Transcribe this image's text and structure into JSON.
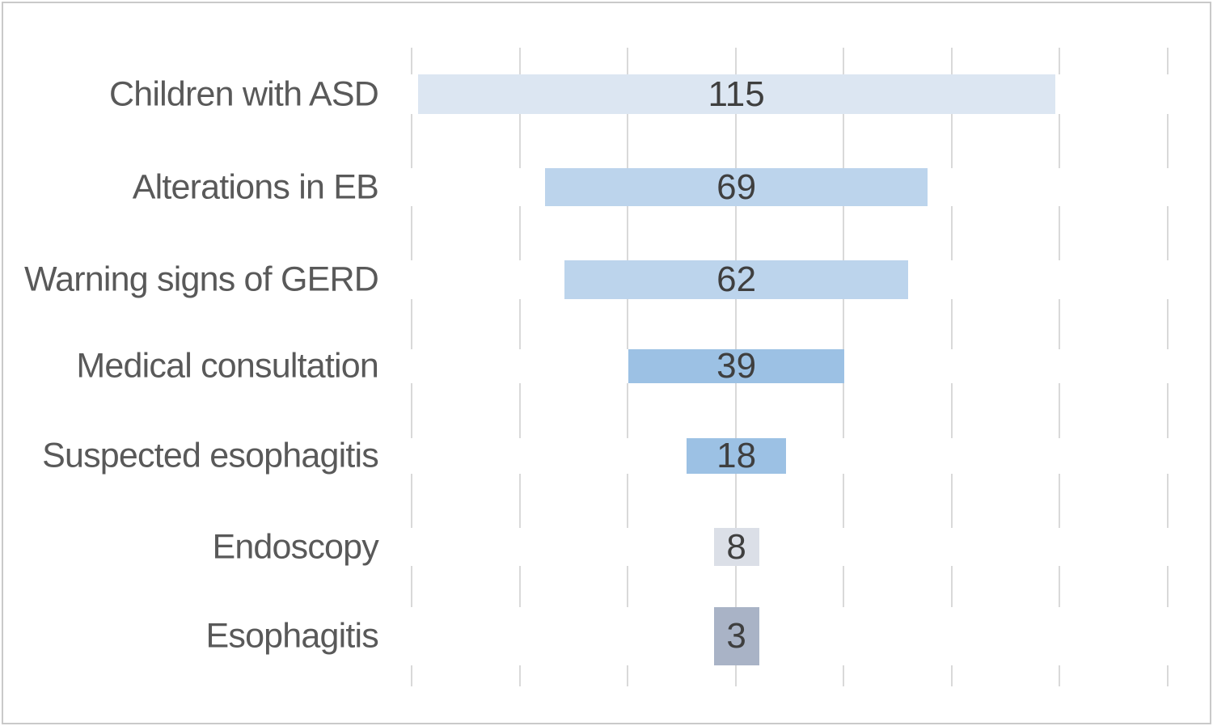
{
  "chart_data": {
    "type": "bar",
    "subtype": "funnel-horizontal-centered",
    "title": "",
    "xlabel": "",
    "ylabel": "",
    "categories": [
      "Children with ASD",
      "Alterations in EB",
      "Warning signs of GERD",
      "Medical consultation",
      "Suspected esophagitis",
      "Endoscopy",
      "Esophagitis"
    ],
    "values": [
      115,
      69,
      62,
      39,
      18,
      8,
      3
    ],
    "bar_colors": [
      "#dce6f2",
      "#bcd4ec",
      "#bcd4ec",
      "#9cc1e4",
      "#9cc1e4",
      "#dbdfe7",
      "#a9b3c6"
    ],
    "value_labels": [
      "115",
      "69",
      "62",
      "39",
      "18",
      "8",
      "3"
    ],
    "legend": "none",
    "grid": "vertical-gridlines-only",
    "gridline_count": 8,
    "axis_tick_labels": "none",
    "colors": {
      "gridline": "#d9d9d9",
      "category_label_text": "#595959",
      "value_label_text": "#3f3f3f",
      "background": "#ffffff",
      "frame_border": "#c9c9c9"
    }
  }
}
